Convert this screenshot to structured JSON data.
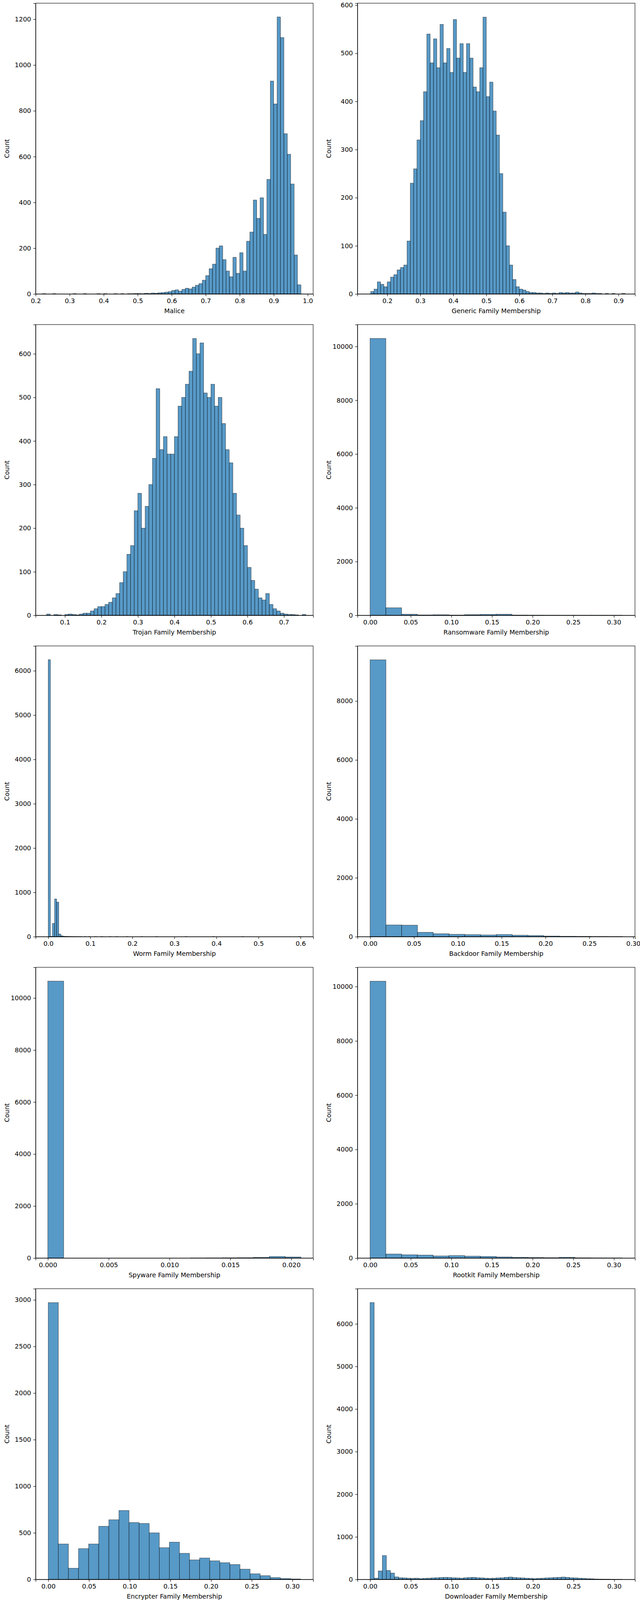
{
  "chart_data": [
    {
      "type": "histogram",
      "x_label": "Malice",
      "y_label": "Count",
      "color": "#1f77b4",
      "xlim": [
        0.2,
        1.016
      ],
      "ylim": [
        0,
        1270
      ],
      "xticks": [
        0.2,
        0.3,
        0.4,
        0.5,
        0.6,
        0.7,
        0.8,
        0.9,
        {
          "value": 1,
          "label": "1.0"
        }
      ],
      "yticks": [
        0,
        200,
        400,
        600,
        800,
        1000,
        1200
      ],
      "bins": [
        0.22,
        0.23,
        0.24,
        0.25,
        0.26,
        0.27,
        0.28,
        0.29,
        0.3,
        0.31,
        0.32,
        0.33,
        0.34,
        0.35,
        0.36,
        0.37,
        0.38,
        0.39,
        0.4,
        0.41,
        0.42,
        0.43,
        0.44,
        0.45,
        0.46,
        0.47,
        0.48,
        0.49,
        0.5,
        0.51,
        0.52,
        0.53,
        0.54,
        0.55,
        0.56,
        0.57,
        0.58,
        0.59,
        0.6,
        0.61,
        0.62,
        0.63,
        0.64,
        0.65,
        0.66,
        0.67,
        0.68,
        0.69,
        0.7,
        0.71,
        0.72,
        0.73,
        0.74,
        0.75,
        0.76,
        0.77,
        0.78,
        0.79,
        0.8,
        0.81,
        0.82,
        0.83,
        0.84,
        0.85,
        0.86,
        0.87,
        0.88,
        0.89,
        0.9,
        0.91,
        0.92,
        0.93,
        0.94,
        0.95,
        0.96,
        0.97,
        0.98
      ],
      "values": [
        1,
        0,
        0,
        1,
        0,
        0,
        0,
        0,
        0,
        1,
        0,
        0,
        1,
        0,
        0,
        0,
        1,
        0,
        1,
        0,
        0,
        1,
        0,
        1,
        0,
        1,
        1,
        2,
        2,
        1,
        3,
        2,
        4,
        3,
        5,
        6,
        8,
        10,
        15,
        18,
        12,
        20,
        25,
        22,
        30,
        38,
        45,
        60,
        80,
        110,
        130,
        200,
        210,
        150,
        100,
        75,
        160,
        90,
        180,
        100,
        230,
        270,
        410,
        330,
        420,
        260,
        500,
        930,
        830,
        1210,
        1120,
        700,
        610,
        480,
        170,
        40
      ]
    },
    {
      "type": "histogram",
      "x_label": "Generic Family Membership",
      "y_label": "Count",
      "color": "#1f77b4",
      "xlim": [
        0.11,
        0.95
      ],
      "ylim": [
        0,
        604
      ],
      "xticks": [
        0.2,
        0.3,
        0.4,
        0.5,
        0.6,
        0.7,
        0.8,
        0.9
      ],
      "yticks": [
        0,
        100,
        200,
        300,
        400,
        500,
        600
      ],
      "bins": [
        0.15,
        0.16,
        0.17,
        0.18,
        0.19,
        0.2,
        0.21,
        0.22,
        0.23,
        0.24,
        0.25,
        0.26,
        0.27,
        0.28,
        0.29,
        0.3,
        0.31,
        0.32,
        0.33,
        0.34,
        0.35,
        0.36,
        0.37,
        0.38,
        0.39,
        0.4,
        0.41,
        0.42,
        0.43,
        0.44,
        0.45,
        0.46,
        0.47,
        0.48,
        0.49,
        0.5,
        0.51,
        0.52,
        0.53,
        0.54,
        0.55,
        0.56,
        0.57,
        0.58,
        0.59,
        0.6,
        0.61,
        0.62,
        0.63,
        0.64,
        0.65,
        0.66,
        0.67,
        0.68,
        0.69,
        0.7,
        0.71,
        0.72,
        0.73,
        0.74,
        0.75,
        0.76,
        0.77,
        0.78,
        0.79,
        0.8,
        0.81,
        0.82,
        0.83,
        0.84,
        0.85,
        0.86,
        0.87,
        0.88,
        0.89,
        0.9,
        0.91,
        0.92
      ],
      "values": [
        5,
        10,
        25,
        20,
        15,
        25,
        35,
        40,
        50,
        55,
        60,
        110,
        230,
        260,
        320,
        360,
        420,
        540,
        480,
        530,
        470,
        560,
        480,
        510,
        460,
        570,
        490,
        520,
        460,
        520,
        490,
        430,
        420,
        470,
        575,
        410,
        440,
        380,
        330,
        250,
        170,
        100,
        60,
        30,
        15,
        10,
        8,
        5,
        3,
        3,
        2,
        2,
        1,
        2,
        1,
        2,
        1,
        3,
        2,
        3,
        2,
        2,
        4,
        2,
        1,
        1,
        1,
        2,
        1,
        1,
        0,
        1,
        0,
        1,
        0,
        0,
        1
      ]
    },
    {
      "type": "histogram",
      "x_label": "Trojan Family Membership",
      "y_label": "Count",
      "color": "#1f77b4",
      "xlim": [
        0.02,
        0.78
      ],
      "ylim": [
        0,
        667
      ],
      "xticks": [
        0.1,
        0.2,
        0.3,
        0.4,
        0.5,
        0.6,
        0.7
      ],
      "yticks": [
        0,
        100,
        200,
        300,
        400,
        500,
        600
      ],
      "bins": [
        0.05,
        0.06,
        0.07,
        0.08,
        0.09,
        0.1,
        0.11,
        0.12,
        0.13,
        0.14,
        0.15,
        0.16,
        0.17,
        0.18,
        0.19,
        0.2,
        0.21,
        0.22,
        0.23,
        0.24,
        0.25,
        0.26,
        0.27,
        0.28,
        0.29,
        0.3,
        0.31,
        0.32,
        0.33,
        0.34,
        0.35,
        0.36,
        0.37,
        0.38,
        0.39,
        0.4,
        0.41,
        0.42,
        0.43,
        0.44,
        0.45,
        0.46,
        0.47,
        0.48,
        0.49,
        0.5,
        0.51,
        0.52,
        0.53,
        0.54,
        0.55,
        0.56,
        0.57,
        0.58,
        0.59,
        0.6,
        0.61,
        0.62,
        0.63,
        0.64,
        0.65,
        0.66,
        0.67,
        0.68,
        0.69,
        0.7,
        0.71,
        0.72,
        0.73,
        0.74,
        0.75,
        0.76
      ],
      "values": [
        3,
        0,
        2,
        1,
        0,
        2,
        3,
        2,
        1,
        3,
        5,
        5,
        10,
        15,
        20,
        20,
        25,
        30,
        40,
        50,
        75,
        100,
        140,
        160,
        240,
        280,
        200,
        250,
        300,
        360,
        520,
        380,
        410,
        370,
        370,
        410,
        480,
        500,
        530,
        560,
        635,
        600,
        625,
        510,
        500,
        530,
        480,
        500,
        440,
        380,
        350,
        280,
        230,
        200,
        160,
        110,
        80,
        60,
        40,
        35,
        50,
        25,
        15,
        10,
        5,
        3,
        2,
        2,
        1,
        0,
        2
      ]
    },
    {
      "type": "histogram",
      "x_label": "Ransomware Family Membership",
      "y_label": "Count",
      "color": "#1f77b4",
      "xlim": [
        -0.0155,
        0.326
      ],
      "ylim": [
        0,
        10815
      ],
      "xticks": [
        {
          "value": 0,
          "label": "0.00"
        },
        0.05,
        {
          "value": 0.1,
          "label": "0.10"
        },
        0.15,
        {
          "value": 0.2,
          "label": "0.20"
        },
        0.25,
        {
          "value": 0.3,
          "label": "0.30"
        }
      ],
      "yticks": [
        0,
        2000,
        4000,
        6000,
        8000,
        10000
      ],
      "bins": [
        0,
        0.0194,
        0.0388,
        0.0582,
        0.0776,
        0.097,
        0.1164,
        0.1358,
        0.1552,
        0.1746,
        0.194,
        0.2134,
        0.2328,
        0.2522,
        0.2716,
        0.291,
        0.3104
      ],
      "values": [
        10300,
        280,
        40,
        15,
        20,
        10,
        25,
        35,
        40,
        8,
        5,
        3,
        2,
        1,
        2,
        1
      ]
    },
    {
      "type": "histogram",
      "x_label": "Worm Family Membership",
      "y_label": "Count",
      "color": "#1f77b4",
      "xlim": [
        -0.03,
        0.63
      ],
      "ylim": [
        0,
        6560
      ],
      "xticks": [
        {
          "value": 0,
          "label": "0.0"
        },
        0.1,
        0.2,
        0.3,
        0.4,
        0.5,
        0.6
      ],
      "yticks": [
        0,
        1000,
        2000,
        3000,
        4000,
        5000,
        6000
      ],
      "bins": [
        0,
        0.005,
        0.01,
        0.015,
        0.02,
        0.025,
        0.03,
        0.035,
        0.04,
        0.045,
        0.05,
        0.055,
        0.06,
        0.065,
        0.07,
        0.075,
        0.08,
        0.085,
        0.09,
        0.095,
        0.1,
        0.105,
        0.11,
        0.115,
        0.12,
        0.125,
        0.13,
        0.135,
        0.14,
        0.145,
        0.15,
        0.155,
        0.16,
        0.165,
        0.17,
        0.175,
        0.18,
        0.185,
        0.19,
        0.195,
        0.2,
        0.205,
        0.21,
        0.215,
        0.22,
        0.225,
        0.23,
        0.235,
        0.24,
        0.245,
        0.25,
        0.255,
        0.26,
        0.265,
        0.27,
        0.275,
        0.28,
        0.285,
        0.29,
        0.295,
        0.3,
        0.305,
        0.31,
        0.315,
        0.32,
        0.325,
        0.33,
        0.335,
        0.34,
        0.345,
        0.35,
        0.355,
        0.36,
        0.365,
        0.37,
        0.375,
        0.38,
        0.385,
        0.39,
        0.395,
        0.4,
        0.405,
        0.41,
        0.415,
        0.42,
        0.425,
        0.43,
        0.435,
        0.44,
        0.445,
        0.45,
        0.455,
        0.46,
        0.465,
        0.47,
        0.475,
        0.48,
        0.485,
        0.49,
        0.495,
        0.5,
        0.505,
        0.51,
        0.515,
        0.52,
        0.525,
        0.53,
        0.535,
        0.54,
        0.545,
        0.55,
        0.555,
        0.56,
        0.565,
        0.57,
        0.575,
        0.58,
        0.585,
        0.59,
        0.595,
        0.6
      ],
      "values": [
        6250,
        5,
        300,
        850,
        780,
        60,
        20,
        10,
        6,
        4,
        3,
        2,
        2,
        1,
        1,
        1,
        0,
        1,
        0,
        1,
        0,
        0,
        1,
        0,
        0,
        1,
        0,
        0,
        0,
        1,
        0,
        0,
        1,
        0,
        0,
        0,
        0,
        1,
        0,
        0,
        0,
        0,
        0,
        0,
        1,
        0,
        0,
        0,
        0,
        0,
        0,
        1,
        0,
        0,
        0,
        0,
        0,
        0,
        0,
        0,
        0,
        0,
        0,
        0,
        0,
        1,
        0,
        0,
        0,
        0,
        0,
        0,
        0,
        0,
        0,
        0,
        0,
        0,
        1,
        0,
        0,
        0,
        0,
        0,
        0,
        0,
        0,
        0,
        0,
        0,
        0,
        0,
        1,
        0,
        0,
        0,
        0,
        0,
        0,
        0,
        0,
        0,
        0,
        0,
        0,
        0,
        0,
        0,
        0,
        0,
        0,
        0,
        0,
        0,
        0,
        0,
        0,
        0,
        0,
        1
      ]
    },
    {
      "type": "histogram",
      "x_label": "Backdoor Family Membership",
      "y_label": "Count",
      "color": "#1f77b4",
      "xlim": [
        -0.0144,
        0.302
      ],
      "ylim": [
        0,
        9870
      ],
      "xticks": [
        {
          "value": 0,
          "label": "0.00"
        },
        0.05,
        {
          "value": 0.1,
          "label": "0.10"
        },
        0.15,
        {
          "value": 0.2,
          "label": "0.20"
        },
        0.25,
        {
          "value": 0.3,
          "label": "0.30"
        }
      ],
      "yticks": [
        0,
        2000,
        4000,
        6000,
        8000
      ],
      "bins": [
        0,
        0.018,
        0.036,
        0.054,
        0.072,
        0.09,
        0.108,
        0.126,
        0.144,
        0.162,
        0.18,
        0.198,
        0.216,
        0.234,
        0.252,
        0.27,
        0.288
      ],
      "values": [
        9400,
        400,
        390,
        150,
        100,
        80,
        70,
        60,
        75,
        50,
        40,
        20,
        15,
        10,
        5,
        3
      ]
    },
    {
      "type": "histogram",
      "x_label": "Spyware Family Membership",
      "y_label": "Count",
      "color": "#1f77b4",
      "xlim": [
        -0.001,
        0.0218
      ],
      "ylim": [
        0,
        11180
      ],
      "xticks": [
        {
          "value": 0,
          "label": "0.000"
        },
        0.005,
        {
          "value": 0.01,
          "label": "0.010"
        },
        0.015,
        {
          "value": 0.02,
          "label": "0.020"
        }
      ],
      "yticks": [
        0,
        2000,
        4000,
        6000,
        8000,
        10000
      ],
      "bins": [
        0,
        0.0013,
        0.0026,
        0.0039,
        0.0052,
        0.0065,
        0.0078,
        0.0091,
        0.0104,
        0.0117,
        0.013,
        0.0143,
        0.0156,
        0.0169,
        0.0182,
        0.0195,
        0.0208
      ],
      "values": [
        10650,
        0,
        0,
        0,
        0,
        0,
        0,
        0,
        0,
        2,
        5,
        10,
        15,
        25,
        60,
        40
      ]
    },
    {
      "type": "histogram",
      "x_label": "Rootkit Family Membership",
      "y_label": "Count",
      "color": "#1f77b4",
      "xlim": [
        -0.0155,
        0.326
      ],
      "ylim": [
        0,
        10710
      ],
      "xticks": [
        {
          "value": 0,
          "label": "0.00"
        },
        0.05,
        {
          "value": 0.1,
          "label": "0.10"
        },
        0.15,
        {
          "value": 0.2,
          "label": "0.20"
        },
        0.25,
        {
          "value": 0.3,
          "label": "0.30"
        }
      ],
      "yticks": [
        0,
        2000,
        4000,
        6000,
        8000,
        10000
      ],
      "bins": [
        0,
        0.0194,
        0.0388,
        0.0582,
        0.0776,
        0.097,
        0.1164,
        0.1358,
        0.1552,
        0.1746,
        0.194,
        0.2134,
        0.2328,
        0.2522,
        0.2716,
        0.291,
        0.3104
      ],
      "values": [
        10200,
        150,
        120,
        110,
        80,
        90,
        70,
        60,
        40,
        30,
        20,
        15,
        30,
        10,
        5,
        3
      ]
    },
    {
      "type": "histogram",
      "x_label": "Encrypter Family Membership",
      "y_label": "Count",
      "color": "#1f77b4",
      "xlim": [
        -0.0155,
        0.3255
      ],
      "ylim": [
        0,
        3120
      ],
      "xticks": [
        {
          "value": 0,
          "label": "0.00"
        },
        0.05,
        {
          "value": 0.1,
          "label": "0.10"
        },
        0.15,
        {
          "value": 0.2,
          "label": "0.20"
        },
        0.25,
        {
          "value": 0.3,
          "label": "0.30"
        }
      ],
      "yticks": [
        0,
        500,
        1000,
        1500,
        2000,
        2500,
        3000
      ],
      "bins": [
        0,
        0.0124,
        0.0248,
        0.0372,
        0.0496,
        0.062,
        0.0744,
        0.0868,
        0.0992,
        0.1116,
        0.124,
        0.1364,
        0.1488,
        0.1612,
        0.1736,
        0.186,
        0.1984,
        0.2108,
        0.2232,
        0.2356,
        0.248,
        0.2604,
        0.2728,
        0.2852,
        0.2976,
        0.31
      ],
      "values": [
        2970,
        380,
        120,
        330,
        380,
        570,
        640,
        740,
        610,
        600,
        500,
        340,
        400,
        280,
        210,
        230,
        200,
        180,
        160,
        110,
        60,
        40,
        20,
        10,
        5
      ]
    },
    {
      "type": "histogram",
      "x_label": "Downloader Family Membership",
      "y_label": "Count",
      "color": "#1f77b4",
      "xlim": [
        -0.0155,
        0.3255
      ],
      "ylim": [
        0,
        6825
      ],
      "xticks": [
        {
          "value": 0,
          "label": "0.00"
        },
        0.05,
        {
          "value": 0.1,
          "label": "0.10"
        },
        0.15,
        {
          "value": 0.2,
          "label": "0.20"
        },
        0.25,
        {
          "value": 0.3,
          "label": "0.30"
        }
      ],
      "yticks": [
        0,
        1000,
        2000,
        3000,
        4000,
        5000,
        6000
      ],
      "bins": [
        0,
        0.005,
        0.01,
        0.015,
        0.02,
        0.025,
        0.03,
        0.035,
        0.04,
        0.045,
        0.05,
        0.055,
        0.06,
        0.065,
        0.07,
        0.075,
        0.08,
        0.085,
        0.09,
        0.095,
        0.1,
        0.105,
        0.11,
        0.115,
        0.12,
        0.125,
        0.13,
        0.135,
        0.14,
        0.145,
        0.15,
        0.155,
        0.16,
        0.165,
        0.17,
        0.175,
        0.18,
        0.185,
        0.19,
        0.195,
        0.2,
        0.205,
        0.21,
        0.215,
        0.22,
        0.225,
        0.23,
        0.235,
        0.24,
        0.245,
        0.25,
        0.255,
        0.26,
        0.265,
        0.27,
        0.275,
        0.28,
        0.285,
        0.29,
        0.295,
        0.3,
        0.305,
        0.31
      ],
      "values": [
        6500,
        30,
        200,
        560,
        210,
        150,
        60,
        40,
        35,
        30,
        25,
        30,
        20,
        25,
        30,
        35,
        40,
        45,
        50,
        45,
        40,
        35,
        30,
        40,
        45,
        50,
        40,
        35,
        30,
        25,
        30,
        35,
        40,
        50,
        55,
        45,
        40,
        35,
        30,
        25,
        20,
        25,
        30,
        35,
        40,
        45,
        50,
        55,
        50,
        40,
        35,
        30,
        25,
        20,
        15,
        10,
        8,
        5,
        4,
        3,
        2,
        1
      ]
    }
  ]
}
